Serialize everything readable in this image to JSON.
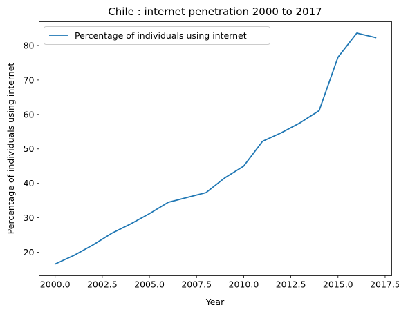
{
  "chart_data": {
    "type": "line",
    "title": "Chile : internet penetration 2000 to 2017",
    "xlabel": "Year",
    "ylabel": "Percentage of individuals using internet",
    "xlim": [
      1999.15,
      2017.85
    ],
    "ylim": [
      13.2,
      86.9
    ],
    "xticks": [
      2000.0,
      2002.5,
      2005.0,
      2007.5,
      2010.0,
      2012.5,
      2015.0,
      2017.5
    ],
    "xtick_labels": [
      "2000.0",
      "2002.5",
      "2005.0",
      "2007.5",
      "2010.0",
      "2012.5",
      "2015.0",
      "2017.5"
    ],
    "yticks": [
      20,
      30,
      40,
      50,
      60,
      70,
      80
    ],
    "ytick_labels": [
      "20",
      "30",
      "40",
      "50",
      "60",
      "70",
      "80"
    ],
    "grid": false,
    "legend_position": "top-left",
    "series": [
      {
        "name": "Percentage of individuals using internet",
        "color": "#1f77b4",
        "x": [
          2000,
          2001,
          2002,
          2003,
          2004,
          2005,
          2006,
          2007,
          2008,
          2009,
          2010,
          2011,
          2012,
          2013,
          2014,
          2015,
          2016,
          2017
        ],
        "y": [
          16.6,
          19.1,
          22.1,
          25.5,
          28.2,
          31.2,
          34.5,
          35.9,
          37.3,
          41.6,
          45.0,
          52.2,
          54.7,
          57.6,
          61.1,
          76.6,
          83.6,
          82.3
        ]
      }
    ]
  }
}
